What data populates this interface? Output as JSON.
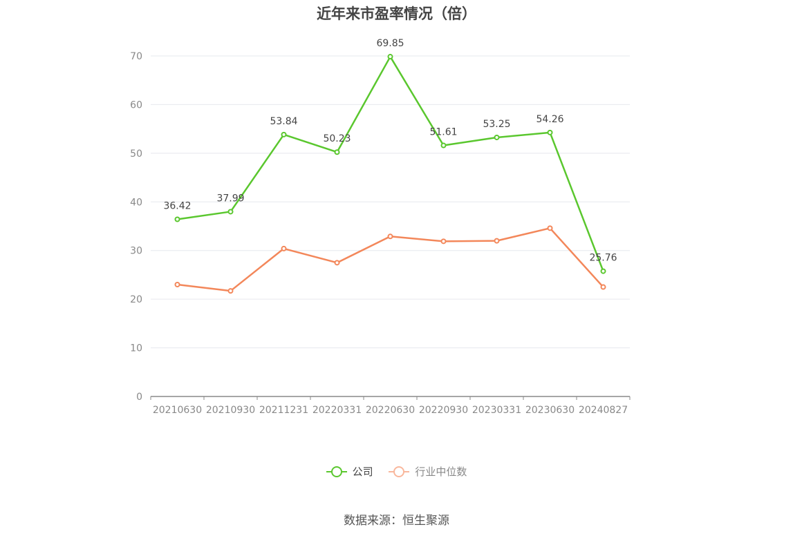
{
  "title": "近年来市盈率情况（倍）",
  "source": "数据来源：恒生聚源",
  "colors": {
    "company": "#5ac72e",
    "industry": "#f3875a",
    "grid": "#e6e8ee",
    "axis": "#888888"
  },
  "chart_data": {
    "type": "line",
    "title": "近年来市盈率情况（倍）",
    "categories": [
      "20210630",
      "20210930",
      "20211231",
      "20220331",
      "20220630",
      "20220930",
      "20230331",
      "20230630",
      "20240827"
    ],
    "ylim": [
      0,
      70
    ],
    "yticks": [
      0,
      10,
      20,
      30,
      40,
      50,
      60,
      70
    ],
    "grid": true,
    "legend_position": "bottom-center",
    "series": [
      {
        "name": "公司",
        "color": "#5ac72e",
        "values": [
          36.42,
          37.99,
          53.84,
          50.23,
          69.85,
          51.61,
          53.25,
          54.26,
          25.76
        ],
        "labels_shown": true
      },
      {
        "name": "行业中位数",
        "color": "#f3875a",
        "values": [
          23.0,
          21.7,
          30.4,
          27.5,
          32.9,
          31.9,
          32.0,
          34.6,
          22.5
        ],
        "labels_shown": false
      }
    ]
  }
}
